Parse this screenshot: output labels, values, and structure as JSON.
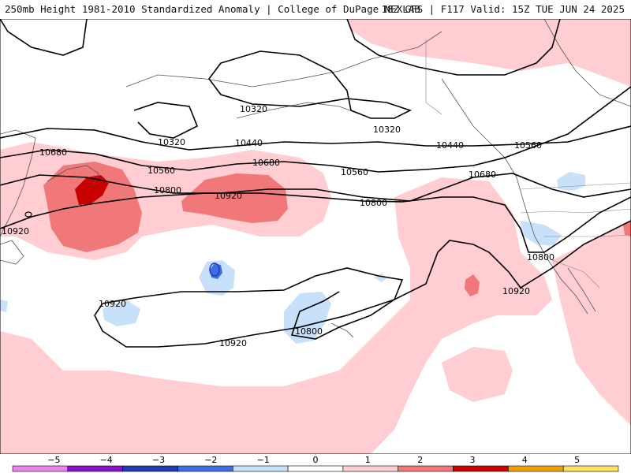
{
  "header": {
    "left_title": "250mb Height 1981-2010 Standardized Anomaly | College of DuPage NEXLAB",
    "right_title": "18Z GFS | F117 Valid: 15Z TUE JUN 24 2025"
  },
  "contour_labels": [
    "10320",
    "10320",
    "10320",
    "10440",
    "10440",
    "10560",
    "10560",
    "10560",
    "10680",
    "10680",
    "10680",
    "10800",
    "10800",
    "10800",
    "10800",
    "10920",
    "10920",
    "10920",
    "10920",
    "10920"
  ],
  "legend": {
    "ticks": [
      "−5",
      "−4",
      "−3",
      "−2",
      "−1",
      "0",
      "1",
      "2",
      "3",
      "4",
      "5"
    ],
    "colors": [
      "#ee82ee",
      "#8b10c8",
      "#1e3cb4",
      "#3c6ee6",
      "#c8e1fa",
      "#ffffff",
      "#ffcdd2",
      "#f07878",
      "#c80000",
      "#f0a000",
      "#ffe060"
    ]
  }
}
